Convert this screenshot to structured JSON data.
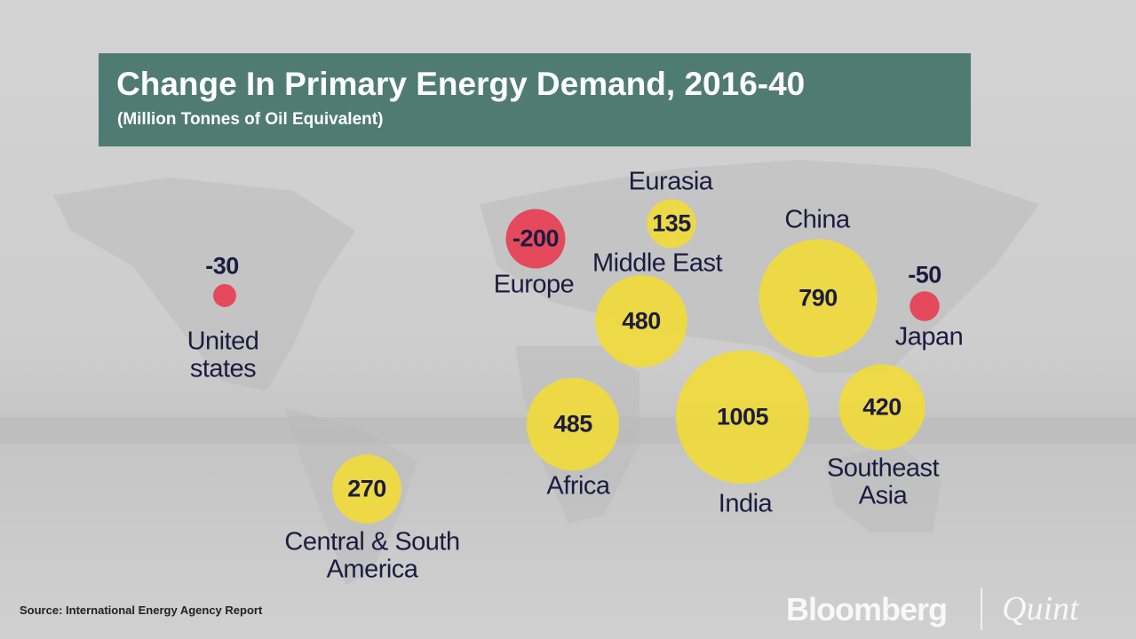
{
  "chart_data": {
    "type": "bubble-map",
    "title": "Change In Primary Energy Demand, 2016-40",
    "subtitle": "(Million Tonnes of Oil Equivalent)",
    "categories": [
      "United states",
      "Europe",
      "Eurasia",
      "Middle East",
      "China",
      "Japan",
      "Africa",
      "India",
      "Southeast Asia",
      "Central & South America"
    ],
    "values": [
      -30,
      -200,
      135,
      480,
      790,
      -50,
      485,
      1005,
      420,
      270
    ],
    "color": "#f3dc33",
    "negative_color": "#e8394d",
    "source": "Source: International Energy Agency Report",
    "brand": [
      "Bloomberg",
      "Quint"
    ]
  }
}
